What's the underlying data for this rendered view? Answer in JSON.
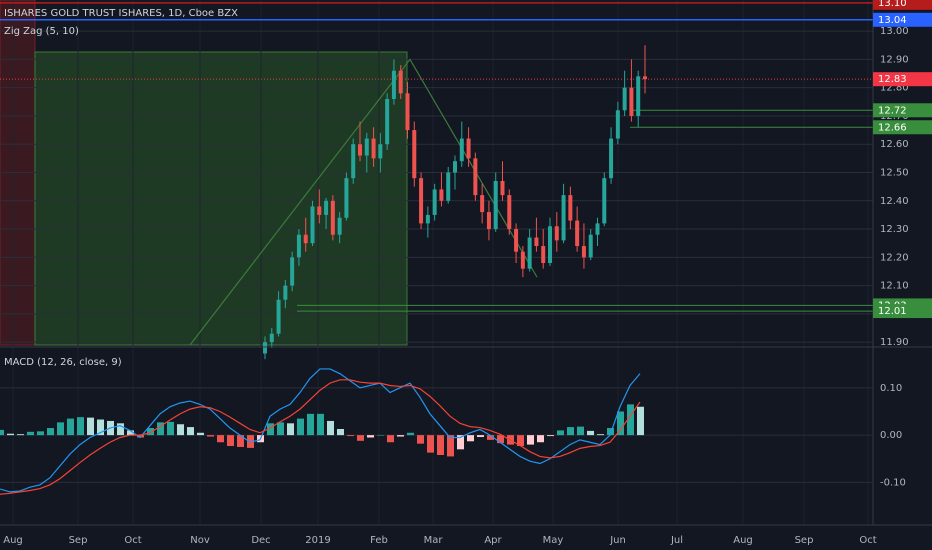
{
  "header": {
    "title": "ISHARES GOLD TRUST ISHARES, 1D, Cboe BZX",
    "indicator": "Zig Zag (5, 10)"
  },
  "chart_data": [
    {
      "type": "candlestick",
      "up_color": "#26a69a",
      "down_color": "#ef5350",
      "ylim": [
        11.89,
        13.11
      ],
      "yticks": [
        {
          "value": 13.0,
          "label": "13.00"
        },
        {
          "value": 12.9,
          "label": "12.90"
        },
        {
          "value": 12.8,
          "label": "12.80"
        },
        {
          "value": 12.7,
          "label": "12.70"
        },
        {
          "value": 12.6,
          "label": "12.60"
        },
        {
          "value": 12.5,
          "label": "12.50"
        },
        {
          "value": 12.4,
          "label": "12.40"
        },
        {
          "value": 12.3,
          "label": "12.30"
        },
        {
          "value": 12.2,
          "label": "12.20"
        },
        {
          "value": 12.1,
          "label": "12.10"
        },
        {
          "value": 12.0,
          "label": "12.00"
        },
        {
          "value": 11.9,
          "label": "11.90"
        }
      ],
      "grid": true,
      "ohlc": [
        [
          11.86,
          11.92,
          11.84,
          11.9
        ],
        [
          11.9,
          11.95,
          11.88,
          11.93
        ],
        [
          11.93,
          12.08,
          11.92,
          12.05
        ],
        [
          12.05,
          12.12,
          12.02,
          12.1
        ],
        [
          12.1,
          12.22,
          12.08,
          12.2
        ],
        [
          12.2,
          12.3,
          12.17,
          12.28
        ],
        [
          12.28,
          12.34,
          12.22,
          12.25
        ],
        [
          12.25,
          12.4,
          12.24,
          12.38
        ],
        [
          12.38,
          12.44,
          12.32,
          12.35
        ],
        [
          12.35,
          12.41,
          12.3,
          12.4
        ],
        [
          12.4,
          12.42,
          12.26,
          12.28
        ],
        [
          12.28,
          12.36,
          12.25,
          12.34
        ],
        [
          12.34,
          12.5,
          12.33,
          12.48
        ],
        [
          12.48,
          12.62,
          12.46,
          12.6
        ],
        [
          12.6,
          12.68,
          12.54,
          12.56
        ],
        [
          12.56,
          12.64,
          12.5,
          12.62
        ],
        [
          12.62,
          12.66,
          12.52,
          12.55
        ],
        [
          12.55,
          12.64,
          12.5,
          12.6
        ],
        [
          12.6,
          12.78,
          12.58,
          12.76
        ],
        [
          12.76,
          12.9,
          12.74,
          12.86
        ],
        [
          12.86,
          12.88,
          12.76,
          12.78
        ],
        [
          12.78,
          12.82,
          12.62,
          12.65
        ],
        [
          12.65,
          12.68,
          12.45,
          12.48
        ],
        [
          12.48,
          12.5,
          12.3,
          12.32
        ],
        [
          12.32,
          12.38,
          12.27,
          12.35
        ],
        [
          12.35,
          12.46,
          12.33,
          12.44
        ],
        [
          12.44,
          12.5,
          12.38,
          12.4
        ],
        [
          12.4,
          12.52,
          12.39,
          12.5
        ],
        [
          12.5,
          12.56,
          12.44,
          12.54
        ],
        [
          12.54,
          12.68,
          12.52,
          12.62
        ],
        [
          12.62,
          12.66,
          12.52,
          12.55
        ],
        [
          12.55,
          12.57,
          12.4,
          12.42
        ],
        [
          12.42,
          12.46,
          12.32,
          12.36
        ],
        [
          12.36,
          12.4,
          12.26,
          12.3
        ],
        [
          12.3,
          12.5,
          12.29,
          12.47
        ],
        [
          12.47,
          12.54,
          12.4,
          12.42
        ],
        [
          12.42,
          12.44,
          12.28,
          12.3
        ],
        [
          12.3,
          12.32,
          12.18,
          12.22
        ],
        [
          12.22,
          12.24,
          12.13,
          12.16
        ],
        [
          12.16,
          12.3,
          12.15,
          12.27
        ],
        [
          12.27,
          12.34,
          12.22,
          12.24
        ],
        [
          12.24,
          12.3,
          12.16,
          12.18
        ],
        [
          12.18,
          12.34,
          12.17,
          12.31
        ],
        [
          12.31,
          12.36,
          12.22,
          12.26
        ],
        [
          12.26,
          12.46,
          12.25,
          12.42
        ],
        [
          12.42,
          12.45,
          12.3,
          12.33
        ],
        [
          12.33,
          12.38,
          12.22,
          12.24
        ],
        [
          12.24,
          12.32,
          12.16,
          12.2
        ],
        [
          12.2,
          12.3,
          12.19,
          12.28
        ],
        [
          12.28,
          12.34,
          12.24,
          12.32
        ],
        [
          12.32,
          12.5,
          12.31,
          12.48
        ],
        [
          12.48,
          12.66,
          12.46,
          12.62
        ],
        [
          12.62,
          12.75,
          12.6,
          12.72
        ],
        [
          12.72,
          12.86,
          12.7,
          12.8
        ],
        [
          12.8,
          12.9,
          12.68,
          12.7
        ],
        [
          12.7,
          12.86,
          12.66,
          12.84
        ],
        [
          12.84,
          12.95,
          12.78,
          12.83
        ]
      ],
      "levels": [
        {
          "value": 13.1,
          "label": "13.10",
          "color": "#b71c1c"
        },
        {
          "value": 13.04,
          "label": "13.04",
          "color": "#2962ff"
        },
        {
          "value": 12.83,
          "label": "12.83",
          "color": "#f23645"
        },
        {
          "value": 12.72,
          "label": "12.72",
          "color": "#388e3c"
        },
        {
          "value": 12.66,
          "label": "12.66",
          "color": "#388e3c"
        },
        {
          "value": 12.03,
          "label": "12.03",
          "color": "#388e3c"
        },
        {
          "value": 12.01,
          "label": "12.01",
          "color": "#388e3c"
        }
      ],
      "zigzag": {
        "values": [
          11.89,
          12.9,
          12.13
        ],
        "color": "#3d7a3a"
      }
    },
    {
      "type": "macd",
      "title": "MACD (12, 26, close, 9)",
      "ylim": [
        -0.19,
        0.18
      ],
      "yticks": [
        {
          "value": 0.1,
          "label": "0.10"
        },
        {
          "value": 0.0,
          "label": "0.00"
        },
        {
          "value": -0.1,
          "label": "-0.10"
        }
      ],
      "xticks": [
        "Aug",
        "Sep",
        "Oct",
        "Nov",
        "Dec",
        "2019",
        "Feb",
        "Mar",
        "Apr",
        "May",
        "Jun",
        "Jul",
        "Aug",
        "Sep",
        "Oct"
      ],
      "series": [
        {
          "name": "MACD",
          "color": "#2196f3",
          "values": [
            -0.114,
            -0.12,
            -0.118,
            -0.11,
            -0.105,
            -0.09,
            -0.065,
            -0.04,
            -0.02,
            -0.005,
            0.005,
            0.015,
            0.02,
            0.01,
            -0.005,
            0.02,
            0.045,
            0.06,
            0.068,
            0.072,
            0.065,
            0.055,
            0.035,
            0.015,
            0.0,
            -0.015,
            -0.01,
            0.04,
            0.055,
            0.065,
            0.09,
            0.12,
            0.14,
            0.14,
            0.13,
            0.115,
            0.1,
            0.105,
            0.11,
            0.09,
            0.1,
            0.11,
            0.08,
            0.045,
            0.02,
            -0.005,
            -0.005,
            0.005,
            0.012,
            0.0,
            -0.015,
            -0.03,
            -0.045,
            -0.055,
            -0.06,
            -0.05,
            -0.035,
            -0.02,
            -0.01,
            -0.015,
            -0.02,
            0.0,
            0.06,
            0.105,
            0.13
          ]
        },
        {
          "name": "Signal",
          "color": "#f44336",
          "values": [
            -0.125,
            -0.123,
            -0.12,
            -0.117,
            -0.113,
            -0.105,
            -0.092,
            -0.075,
            -0.058,
            -0.042,
            -0.028,
            -0.015,
            -0.005,
            0.0,
            0.0,
            0.005,
            0.018,
            0.032,
            0.045,
            0.055,
            0.06,
            0.058,
            0.05,
            0.038,
            0.025,
            0.012,
            0.005,
            0.015,
            0.028,
            0.04,
            0.055,
            0.075,
            0.095,
            0.11,
            0.117,
            0.117,
            0.112,
            0.11,
            0.11,
            0.105,
            0.103,
            0.105,
            0.098,
            0.082,
            0.062,
            0.04,
            0.025,
            0.018,
            0.016,
            0.01,
            0.002,
            -0.01,
            -0.022,
            -0.035,
            -0.045,
            -0.048,
            -0.045,
            -0.037,
            -0.028,
            -0.024,
            -0.022,
            -0.015,
            0.01,
            0.04,
            0.07
          ]
        }
      ],
      "histogram": {
        "colors": [
          "#26a69a",
          "#b2dfdb",
          "#ffcdd2",
          "#ef5350"
        ],
        "values": [
          0.011,
          0.003,
          0.002,
          0.007,
          0.008,
          0.015,
          0.027,
          0.035,
          0.038,
          0.037,
          0.033,
          0.03,
          0.025,
          0.01,
          -0.005,
          0.015,
          0.027,
          0.028,
          0.023,
          0.017,
          0.005,
          -0.003,
          -0.015,
          -0.023,
          -0.025,
          -0.027,
          -0.015,
          0.025,
          0.027,
          0.025,
          0.035,
          0.045,
          0.045,
          0.03,
          0.013,
          -0.002,
          -0.012,
          -0.005,
          0.0,
          -0.015,
          -0.003,
          0.005,
          -0.018,
          -0.037,
          -0.042,
          -0.045,
          -0.03,
          -0.013,
          -0.004,
          -0.01,
          -0.017,
          -0.02,
          -0.023,
          -0.02,
          -0.015,
          -0.002,
          0.01,
          0.017,
          0.018,
          0.009,
          0.002,
          0.015,
          0.05,
          0.065,
          0.06
        ]
      }
    }
  ]
}
